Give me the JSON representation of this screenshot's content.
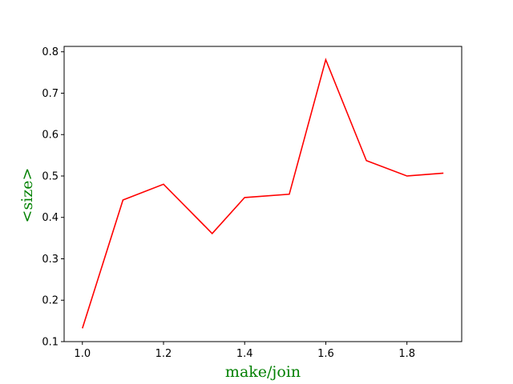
{
  "chart_data": {
    "type": "line",
    "title": "",
    "xlabel": "make/join",
    "ylabel": "<size>",
    "label_color": "#008000",
    "line_color": "#ff0000",
    "grid": false,
    "xlim": [
      0.955,
      1.935
    ],
    "ylim": [
      0.1,
      0.813
    ],
    "xticks": [
      "1.0",
      "1.2",
      "1.4",
      "1.6",
      "1.8"
    ],
    "yticks": [
      "0.1",
      "0.2",
      "0.3",
      "0.4",
      "0.5",
      "0.6",
      "0.7",
      "0.8"
    ],
    "series": [
      {
        "x": [
          1.0,
          1.1,
          1.2,
          1.32,
          1.4,
          1.51,
          1.6,
          1.7,
          1.8,
          1.89
        ],
        "y": [
          0.132,
          0.442,
          0.48,
          0.361,
          0.448,
          0.456,
          0.781,
          0.537,
          0.5,
          0.507
        ]
      }
    ]
  }
}
